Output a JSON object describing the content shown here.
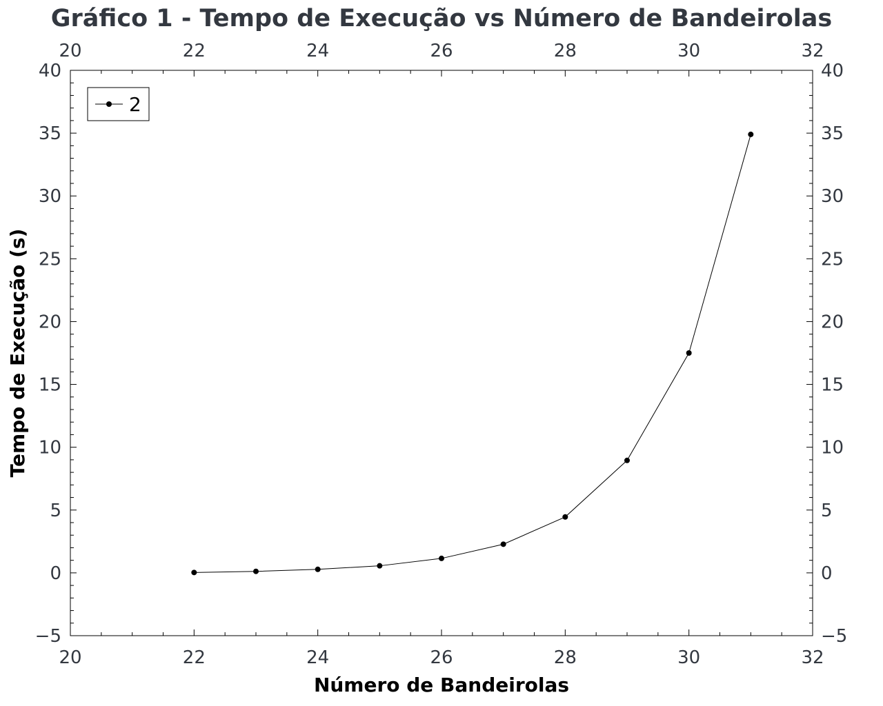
{
  "chart_data": {
    "type": "line",
    "title": "Gráfico 1 - Tempo de Execução vs Número de Bandeirolas",
    "xlabel": "Número de Bandeirolas",
    "ylabel": "Tempo de Execução (s)",
    "xlim": [
      20,
      32
    ],
    "ylim": [
      -5,
      40
    ],
    "x_ticks": [
      "20",
      "22",
      "24",
      "26",
      "28",
      "30",
      "32"
    ],
    "y_ticks": [
      "−5",
      "0",
      "5",
      "10",
      "15",
      "20",
      "25",
      "30",
      "35",
      "40"
    ],
    "grid": false,
    "legend_position": "top-left",
    "series": [
      {
        "name": "2",
        "color": "#000000",
        "marker": "circle",
        "x": [
          22,
          23,
          24,
          25,
          26,
          27,
          28,
          29,
          30,
          31
        ],
        "y": [
          0.03,
          0.12,
          0.28,
          0.56,
          1.15,
          2.28,
          4.45,
          8.95,
          17.5,
          34.9
        ]
      }
    ]
  }
}
